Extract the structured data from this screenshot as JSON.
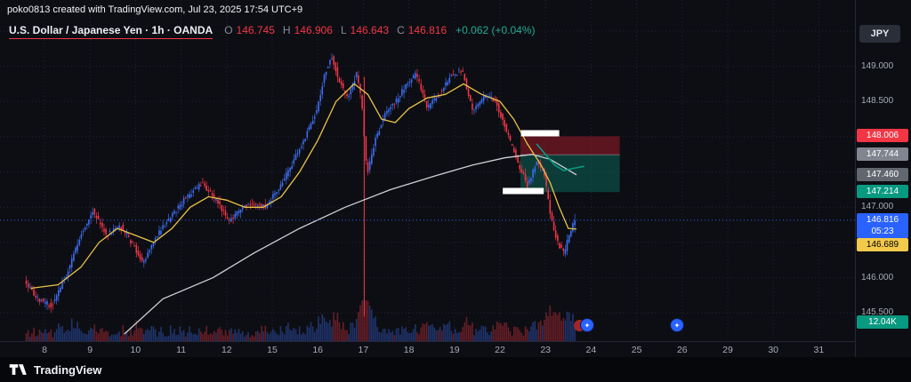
{
  "watermark": "poko0813 created with TradingView.com, Jul 23, 2025 17:54 UTC+9",
  "symbol_bar": {
    "title": "U.S. Dollar / Japanese Yen · 1h · OANDA",
    "o_label": "O",
    "o_value": "146.745",
    "h_label": "H",
    "h_value": "146.906",
    "l_label": "L",
    "l_value": "146.643",
    "c_label": "C",
    "c_value": "146.816",
    "change": "+0.062 (+0.04%)"
  },
  "currency_button_label": "JPY",
  "footer": {
    "brand": "TradingView"
  },
  "axis": {
    "price_labels": [
      {
        "text": "149.000",
        "price": 149.0
      },
      {
        "text": "148.500",
        "price": 148.5
      },
      {
        "text": "147.000",
        "price": 147.0
      },
      {
        "text": "146.000",
        "price": 146.0
      },
      {
        "text": "145.500",
        "price": 145.5
      }
    ],
    "badges": [
      {
        "name": "stop-price-badge",
        "text": "148.006",
        "price": 148.006,
        "bg": "#f23645",
        "fg": "#ffffff"
      },
      {
        "name": "entry-price-badge",
        "text": "147.744",
        "price": 147.744,
        "bg": "#808590",
        "fg": "#ffffff"
      },
      {
        "name": "ma-slow-price-badge",
        "text": "147.460",
        "price": 147.46,
        "bg": "#62666f",
        "fg": "#ffffff"
      },
      {
        "name": "target-price-badge",
        "text": "147.214",
        "price": 147.214,
        "bg": "#089981",
        "fg": "#ffffff"
      },
      {
        "name": "last-price-badge",
        "text": "146.816",
        "sub": "05:23",
        "price": 146.816,
        "bg": "#2962ff",
        "fg": "#ffffff"
      },
      {
        "name": "ma-fast-price-badge",
        "text": "146.689",
        "price": 146.689,
        "dy": 18,
        "bg": "#f2c94c",
        "fg": "#000000"
      },
      {
        "name": "volume-badge",
        "text": "12.04K",
        "price": 145.36,
        "bg": "#089981",
        "fg": "#ffffff"
      }
    ],
    "time_labels": [
      {
        "t": "8",
        "u": 0
      },
      {
        "t": "9",
        "u": 1
      },
      {
        "t": "10",
        "u": 2
      },
      {
        "t": "11",
        "u": 3
      },
      {
        "t": "12",
        "u": 4
      },
      {
        "t": "15",
        "u": 5
      },
      {
        "t": "16",
        "u": 6
      },
      {
        "t": "17",
        "u": 7
      },
      {
        "t": "18",
        "u": 8
      },
      {
        "t": "19",
        "u": 9
      },
      {
        "t": "22",
        "u": 10
      },
      {
        "t": "23",
        "u": 11
      },
      {
        "t": "24",
        "u": 12
      },
      {
        "t": "25",
        "u": 13
      },
      {
        "t": "26",
        "u": 14
      },
      {
        "t": "29",
        "u": 15
      },
      {
        "t": "30",
        "u": 16
      },
      {
        "t": "31",
        "u": 17
      }
    ]
  },
  "stickers": [
    {
      "x": 652,
      "y": 358,
      "type": "pair",
      "glyph": "✦"
    },
    {
      "x": 753,
      "y": 358,
      "type": "single",
      "glyph": "✦"
    }
  ],
  "chart_data": {
    "type": "candlestick",
    "title": "U.S. Dollar / Japanese Yen",
    "interval": "1h",
    "exchange": "OANDA",
    "last": {
      "o": 146.745,
      "h": 146.906,
      "l": 146.643,
      "c": 146.816,
      "change": 0.062,
      "change_pct": 0.04
    },
    "y_range": {
      "min": 145.1,
      "max": 149.94
    },
    "visible_price_ticks": [
      145.5,
      146.0,
      146.5,
      147.0,
      147.5,
      148.0,
      148.5,
      149.0,
      149.5
    ],
    "bars_per_day": 24,
    "u_start": -0.4,
    "u_end": 11.68,
    "up_color": "#3d6df2",
    "down_color": "#f23645",
    "price_waypoints": [
      [
        -0.4,
        145.95
      ],
      [
        -0.1,
        145.7
      ],
      [
        0.2,
        145.6
      ],
      [
        0.5,
        146.0
      ],
      [
        0.8,
        146.55
      ],
      [
        1.1,
        146.95
      ],
      [
        1.4,
        146.6
      ],
      [
        1.7,
        146.75
      ],
      [
        2.0,
        146.45
      ],
      [
        2.2,
        146.18
      ],
      [
        2.5,
        146.6
      ],
      [
        2.8,
        146.85
      ],
      [
        3.1,
        147.1
      ],
      [
        3.5,
        147.35
      ],
      [
        3.8,
        147.1
      ],
      [
        4.1,
        146.8
      ],
      [
        4.5,
        147.05
      ],
      [
        4.9,
        147.0
      ],
      [
        5.3,
        147.4
      ],
      [
        5.7,
        147.9
      ],
      [
        6.0,
        148.35
      ],
      [
        6.2,
        148.9
      ],
      [
        6.35,
        149.15
      ],
      [
        6.5,
        148.8
      ],
      [
        6.7,
        148.55
      ],
      [
        6.9,
        148.9
      ],
      [
        7.02,
        148.4
      ],
      [
        7.12,
        147.45
      ],
      [
        7.3,
        147.95
      ],
      [
        7.5,
        148.3
      ],
      [
        7.75,
        148.5
      ],
      [
        8.0,
        148.75
      ],
      [
        8.2,
        148.9
      ],
      [
        8.45,
        148.4
      ],
      [
        8.7,
        148.6
      ],
      [
        8.95,
        148.85
      ],
      [
        9.2,
        148.95
      ],
      [
        9.45,
        148.35
      ],
      [
        9.7,
        148.6
      ],
      [
        9.95,
        148.5
      ],
      [
        10.2,
        148.05
      ],
      [
        10.45,
        147.6
      ],
      [
        10.65,
        147.3
      ],
      [
        10.85,
        147.65
      ],
      [
        11.0,
        147.5
      ],
      [
        11.15,
        146.9
      ],
      [
        11.3,
        146.5
      ],
      [
        11.45,
        146.35
      ],
      [
        11.55,
        146.6
      ],
      [
        11.68,
        146.8
      ]
    ],
    "ma_fast": {
      "color": "#e8c34a",
      "last_value": 146.689,
      "points": [
        [
          -0.3,
          145.85
        ],
        [
          0.3,
          145.9
        ],
        [
          0.8,
          146.15
        ],
        [
          1.2,
          146.5
        ],
        [
          1.6,
          146.7
        ],
        [
          2.0,
          146.6
        ],
        [
          2.4,
          146.5
        ],
        [
          2.8,
          146.7
        ],
        [
          3.2,
          147.0
        ],
        [
          3.6,
          147.15
        ],
        [
          4.0,
          147.1
        ],
        [
          4.4,
          147.0
        ],
        [
          4.8,
          147.0
        ],
        [
          5.2,
          147.15
        ],
        [
          5.6,
          147.5
        ],
        [
          6.0,
          147.95
        ],
        [
          6.4,
          148.5
        ],
        [
          6.8,
          148.75
        ],
        [
          7.1,
          148.6
        ],
        [
          7.4,
          148.25
        ],
        [
          7.7,
          148.2
        ],
        [
          8.0,
          148.4
        ],
        [
          8.4,
          148.55
        ],
        [
          8.8,
          148.6
        ],
        [
          9.2,
          148.75
        ],
        [
          9.6,
          148.6
        ],
        [
          10.0,
          148.5
        ],
        [
          10.3,
          148.25
        ],
        [
          10.6,
          147.9
        ],
        [
          10.9,
          147.6
        ],
        [
          11.1,
          147.35
        ],
        [
          11.3,
          147.0
        ],
        [
          11.5,
          146.7
        ],
        [
          11.68,
          146.69
        ]
      ]
    },
    "ma_slow": {
      "color": "#cdd0d6",
      "last_value": 147.46,
      "points": [
        [
          1.75,
          145.2
        ],
        [
          2.6,
          145.7
        ],
        [
          3.7,
          146.0
        ],
        [
          4.6,
          146.35
        ],
        [
          5.6,
          146.7
        ],
        [
          6.6,
          147.0
        ],
        [
          7.6,
          147.25
        ],
        [
          8.6,
          147.45
        ],
        [
          9.4,
          147.6
        ],
        [
          10.1,
          147.7
        ],
        [
          10.7,
          147.75
        ],
        [
          11.1,
          147.68
        ],
        [
          11.68,
          147.46
        ]
      ]
    },
    "teal_line": {
      "color": "#089981",
      "points": [
        [
          10.8,
          147.9
        ],
        [
          11.0,
          147.75
        ],
        [
          11.2,
          147.6
        ],
        [
          11.4,
          147.52
        ],
        [
          11.6,
          147.55
        ],
        [
          11.85,
          147.58
        ]
      ]
    },
    "event_vline": {
      "u": 7.02,
      "from": 148.85,
      "to": 145.45,
      "color": "#f23645"
    },
    "current_price_line": {
      "price": 146.816,
      "color": "#2962ff"
    },
    "position_tool": {
      "type": "short",
      "stop": 148.006,
      "entry": 147.744,
      "target": 147.214,
      "u1": 10.45,
      "u2": 12.63,
      "risk_fill": "rgba(156,28,42,0.55)",
      "reward_fill": "rgba(13,98,87,0.55)"
    },
    "white_marks": [
      {
        "u1": 10.46,
        "u2": 11.3,
        "price": 148.05,
        "h": 7
      },
      {
        "u1": 10.06,
        "u2": 10.96,
        "price": 147.23,
        "h": 7
      }
    ]
  }
}
